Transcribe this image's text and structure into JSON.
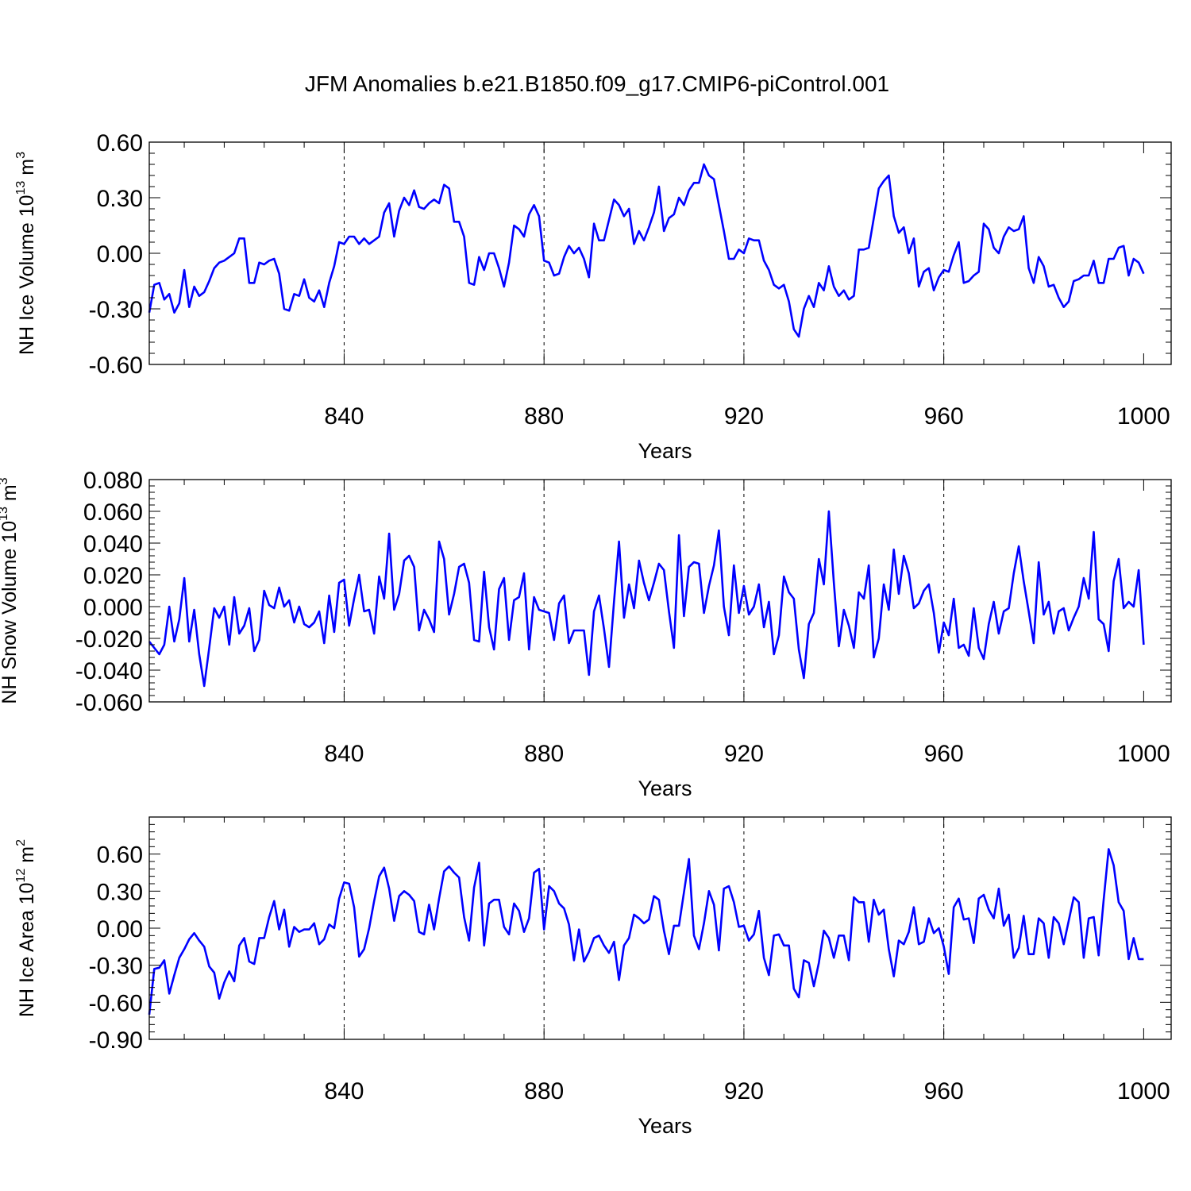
{
  "page_title": "JFM Anomalies b.e21.B1850.f09_g17.CMIP6-piControl.001",
  "line_color": "#0000ff",
  "chart_data": [
    {
      "type": "line",
      "name": "ice-volume",
      "ylabel_main": "NH Ice Volume 10",
      "ylabel_exp": "13",
      "ylabel_unit": " m",
      "ylabel_unit_exp": "3",
      "xlabel": "Years",
      "x_start": 801,
      "xlim": [
        801,
        1005.5
      ],
      "ylim": [
        -0.6,
        0.6
      ],
      "yticks": [
        -0.6,
        -0.3,
        0.0,
        0.3,
        0.6
      ],
      "ytick_labels": [
        "-0.60",
        "-0.30",
        "0.00",
        "0.30",
        "0.60"
      ],
      "xticks": [
        840,
        880,
        920,
        960,
        1000
      ],
      "xtick_labels": [
        "840",
        "880",
        "920",
        "960",
        "1000"
      ],
      "grid_x": [
        840,
        880,
        920,
        960
      ],
      "values": [
        -0.32,
        -0.17,
        -0.16,
        -0.25,
        -0.22,
        -0.32,
        -0.27,
        -0.09,
        -0.29,
        -0.18,
        -0.23,
        -0.21,
        -0.15,
        -0.08,
        -0.05,
        -0.04,
        -0.02,
        0.0,
        0.08,
        0.08,
        -0.16,
        -0.16,
        -0.05,
        -0.06,
        -0.04,
        -0.03,
        -0.11,
        -0.3,
        -0.31,
        -0.22,
        -0.23,
        -0.14,
        -0.24,
        -0.26,
        -0.2,
        -0.29,
        -0.16,
        -0.07,
        0.06,
        0.05,
        0.09,
        0.09,
        0.05,
        0.08,
        0.05,
        0.07,
        0.09,
        0.22,
        0.27,
        0.09,
        0.23,
        0.3,
        0.26,
        0.34,
        0.25,
        0.24,
        0.27,
        0.29,
        0.27,
        0.37,
        0.35,
        0.17,
        0.17,
        0.09,
        -0.16,
        -0.17,
        -0.02,
        -0.09,
        0.0,
        0.0,
        -0.08,
        -0.18,
        -0.05,
        0.15,
        0.13,
        0.09,
        0.21,
        0.26,
        0.2,
        -0.04,
        -0.05,
        -0.12,
        -0.11,
        -0.02,
        0.04,
        0.0,
        0.03,
        -0.03,
        -0.13,
        0.16,
        0.07,
        0.07,
        0.18,
        0.29,
        0.26,
        0.2,
        0.24,
        0.05,
        0.12,
        0.07,
        0.14,
        0.22,
        0.36,
        0.12,
        0.19,
        0.21,
        0.3,
        0.26,
        0.34,
        0.38,
        0.38,
        0.48,
        0.42,
        0.4,
        0.26,
        0.12,
        -0.03,
        -0.03,
        0.02,
        0.0,
        0.08,
        0.07,
        0.07,
        -0.04,
        -0.09,
        -0.17,
        -0.19,
        -0.17,
        -0.26,
        -0.41,
        -0.45,
        -0.3,
        -0.23,
        -0.29,
        -0.16,
        -0.2,
        -0.07,
        -0.18,
        -0.23,
        -0.2,
        -0.25,
        -0.23,
        0.02,
        0.02,
        0.03,
        0.19,
        0.35,
        0.39,
        0.42,
        0.2,
        0.11,
        0.14,
        0.0,
        0.08,
        -0.18,
        -0.1,
        -0.08,
        -0.2,
        -0.13,
        -0.09,
        -0.1,
        -0.01,
        0.06,
        -0.16,
        -0.15,
        -0.12,
        -0.1,
        0.16,
        0.13,
        0.03,
        0.0,
        0.09,
        0.14,
        0.12,
        0.13,
        0.2,
        -0.08,
        -0.16,
        -0.02,
        -0.07,
        -0.18,
        -0.17,
        -0.24,
        -0.29,
        -0.26,
        -0.15,
        -0.14,
        -0.12,
        -0.12,
        -0.04,
        -0.16,
        -0.16,
        -0.03,
        -0.03,
        0.03,
        0.04,
        -0.12,
        -0.03,
        -0.05,
        -0.11
      ]
    },
    {
      "type": "line",
      "name": "snow-volume",
      "ylabel_main": "NH Snow Volume 10",
      "ylabel_exp": "13",
      "ylabel_unit": " m",
      "ylabel_unit_exp": "3",
      "xlabel": "Years",
      "x_start": 801,
      "xlim": [
        801,
        1005.5
      ],
      "ylim": [
        -0.06,
        0.08
      ],
      "yticks": [
        -0.06,
        -0.04,
        -0.02,
        0.0,
        0.02,
        0.04,
        0.06,
        0.08
      ],
      "ytick_labels": [
        "-0.060",
        "-0.040",
        "-0.020",
        "0.000",
        "0.020",
        "0.040",
        "0.060",
        "0.080"
      ],
      "xticks": [
        840,
        880,
        920,
        960,
        1000
      ],
      "xtick_labels": [
        "840",
        "880",
        "920",
        "960",
        "1000"
      ],
      "grid_x": [
        840,
        880,
        920,
        960
      ],
      "values": [
        -0.022,
        -0.026,
        -0.03,
        -0.024,
        0.0,
        -0.022,
        -0.008,
        0.018,
        -0.022,
        -0.002,
        -0.03,
        -0.05,
        -0.026,
        -0.001,
        -0.007,
        0.0,
        -0.024,
        0.006,
        -0.017,
        -0.012,
        -0.001,
        -0.028,
        -0.021,
        0.01,
        0.001,
        -0.001,
        0.012,
        0.0,
        0.004,
        -0.01,
        0.0,
        -0.011,
        -0.013,
        -0.01,
        -0.003,
        -0.023,
        0.007,
        -0.016,
        0.015,
        0.017,
        -0.012,
        0.005,
        0.02,
        -0.003,
        -0.002,
        -0.017,
        0.019,
        0.005,
        0.046,
        -0.002,
        0.008,
        0.029,
        0.032,
        0.025,
        -0.015,
        -0.002,
        -0.008,
        -0.016,
        0.041,
        0.03,
        -0.005,
        0.008,
        0.025,
        0.027,
        0.015,
        -0.021,
        -0.022,
        0.022,
        -0.013,
        -0.027,
        0.011,
        0.018,
        -0.021,
        0.004,
        0.006,
        0.021,
        -0.027,
        0.006,
        -0.002,
        -0.003,
        -0.004,
        -0.021,
        0.002,
        0.007,
        -0.023,
        -0.015,
        -0.015,
        -0.015,
        -0.043,
        -0.003,
        0.007,
        -0.014,
        -0.038,
        0.003,
        0.041,
        -0.007,
        0.014,
        -0.001,
        0.029,
        0.015,
        0.004,
        0.015,
        0.027,
        0.023,
        -0.003,
        -0.026,
        0.045,
        -0.006,
        0.025,
        0.028,
        0.027,
        -0.004,
        0.013,
        0.026,
        0.048,
        0.0,
        -0.018,
        0.026,
        -0.004,
        0.013,
        -0.005,
        0.0,
        0.014,
        -0.013,
        0.003,
        -0.03,
        -0.018,
        0.019,
        0.009,
        0.005,
        -0.027,
        -0.045,
        -0.011,
        -0.004,
        0.03,
        0.014,
        0.06,
        0.015,
        -0.025,
        -0.002,
        -0.012,
        -0.026,
        0.009,
        0.005,
        0.026,
        -0.032,
        -0.02,
        0.014,
        -0.002,
        0.036,
        0.008,
        0.032,
        0.021,
        -0.001,
        0.002,
        0.01,
        0.014,
        -0.004,
        -0.029,
        -0.01,
        -0.018,
        0.005,
        -0.026,
        -0.024,
        -0.031,
        -0.001,
        -0.026,
        -0.033,
        -0.011,
        0.003,
        -0.017,
        -0.003,
        -0.001,
        0.021,
        0.038,
        0.016,
        -0.003,
        -0.023,
        0.028,
        -0.005,
        0.003,
        -0.017,
        -0.003,
        -0.001,
        -0.015,
        -0.007,
        0.0,
        0.018,
        0.005,
        0.047,
        -0.008,
        -0.011,
        -0.028,
        0.016,
        0.03,
        -0.001,
        0.003,
        0.0,
        0.023,
        -0.024
      ]
    },
    {
      "type": "line",
      "name": "ice-area",
      "ylabel_main": "NH Ice Area 10",
      "ylabel_exp": "12",
      "ylabel_unit": " m",
      "ylabel_unit_exp": "2",
      "xlabel": "Years",
      "x_start": 801,
      "xlim": [
        801,
        1005.5
      ],
      "ylim": [
        -0.9,
        0.9
      ],
      "yticks": [
        -0.9,
        -0.6,
        -0.3,
        0.0,
        0.3,
        0.6
      ],
      "ytick_labels": [
        "-0.90",
        "-0.60",
        "-0.30",
        "0.00",
        "0.30",
        "0.60"
      ],
      "xticks": [
        840,
        880,
        920,
        960,
        1000
      ],
      "xtick_labels": [
        "840",
        "880",
        "920",
        "960",
        "1000"
      ],
      "grid_x": [
        840,
        880,
        920,
        960
      ],
      "values": [
        -0.7,
        -0.33,
        -0.32,
        -0.26,
        -0.53,
        -0.38,
        -0.24,
        -0.17,
        -0.09,
        -0.04,
        -0.1,
        -0.15,
        -0.31,
        -0.36,
        -0.57,
        -0.44,
        -0.35,
        -0.43,
        -0.14,
        -0.08,
        -0.27,
        -0.29,
        -0.08,
        -0.08,
        0.09,
        0.22,
        -0.01,
        0.15,
        -0.15,
        0.01,
        -0.03,
        -0.01,
        -0.01,
        0.04,
        -0.13,
        -0.09,
        0.03,
        0.0,
        0.24,
        0.37,
        0.36,
        0.17,
        -0.23,
        -0.17,
        0.0,
        0.22,
        0.42,
        0.49,
        0.32,
        0.06,
        0.26,
        0.3,
        0.27,
        0.22,
        -0.03,
        -0.05,
        0.19,
        -0.01,
        0.24,
        0.46,
        0.5,
        0.45,
        0.41,
        0.09,
        -0.1,
        0.33,
        0.53,
        -0.14,
        0.2,
        0.23,
        0.23,
        0.01,
        -0.05,
        0.2,
        0.14,
        -0.03,
        0.08,
        0.45,
        0.48,
        -0.01,
        0.34,
        0.3,
        0.2,
        0.16,
        0.03,
        -0.26,
        -0.01,
        -0.27,
        -0.19,
        -0.08,
        -0.06,
        -0.14,
        -0.2,
        -0.11,
        -0.42,
        -0.14,
        -0.08,
        0.11,
        0.08,
        0.04,
        0.07,
        0.26,
        0.23,
        -0.02,
        -0.21,
        0.02,
        0.02,
        0.29,
        0.56,
        -0.06,
        -0.17,
        0.04,
        0.3,
        0.19,
        -0.18,
        0.32,
        0.34,
        0.21,
        0.01,
        0.02,
        -0.1,
        -0.05,
        0.14,
        -0.24,
        -0.38,
        -0.06,
        -0.05,
        -0.14,
        -0.14,
        -0.49,
        -0.56,
        -0.26,
        -0.28,
        -0.47,
        -0.28,
        -0.02,
        -0.08,
        -0.24,
        -0.06,
        -0.06,
        -0.26,
        0.25,
        0.21,
        0.21,
        -0.11,
        0.23,
        0.11,
        0.15,
        -0.17,
        -0.39,
        -0.1,
        -0.13,
        -0.03,
        0.17,
        -0.13,
        -0.11,
        0.08,
        -0.04,
        0.0,
        -0.15,
        -0.37,
        0.17,
        0.24,
        0.07,
        0.08,
        -0.12,
        0.24,
        0.27,
        0.15,
        0.08,
        0.32,
        0.02,
        0.11,
        -0.24,
        -0.16,
        0.1,
        -0.21,
        -0.21,
        0.08,
        0.04,
        -0.24,
        0.09,
        0.04,
        -0.13,
        0.06,
        0.25,
        0.21,
        -0.24,
        0.08,
        0.09,
        -0.22,
        0.23,
        0.64,
        0.51,
        0.21,
        0.14,
        -0.25,
        -0.08,
        -0.25,
        -0.25
      ]
    }
  ]
}
